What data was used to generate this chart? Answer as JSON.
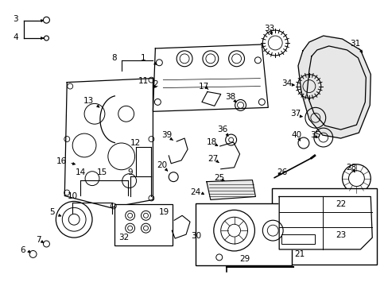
{
  "background_color": "#ffffff",
  "line_color": "#000000",
  "label_fontsize": 7.5
}
